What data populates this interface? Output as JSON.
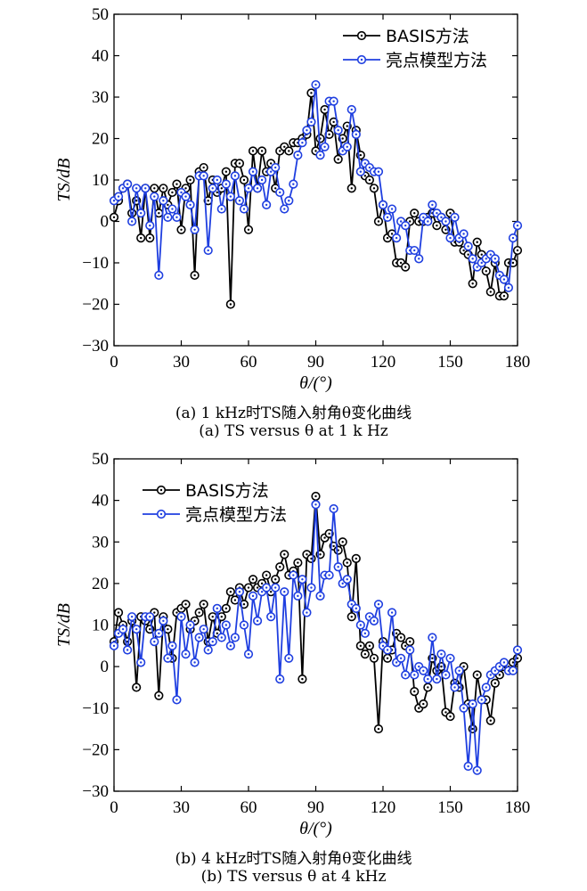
{
  "chart_data": [
    {
      "type": "line",
      "xlabel": "θ/(°)",
      "ylabel": "TS/dB",
      "xlim": [
        0,
        180
      ],
      "ylim": [
        -30,
        50
      ],
      "xticks": [
        0,
        30,
        60,
        90,
        120,
        150,
        180
      ],
      "yticks": [
        -30,
        -20,
        -10,
        0,
        10,
        20,
        30,
        40,
        50
      ],
      "xtick_labels": [
        "0",
        "30",
        "60",
        "90",
        "120",
        "150",
        "180"
      ],
      "ytick_labels": [
        "−30",
        "−20",
        "−10",
        "0",
        "10",
        "20",
        "30",
        "40",
        "50"
      ],
      "grid": false,
      "legend_position": "top-right",
      "caption_cn": "(a) 1 kHz时TS随入射角θ变化曲线",
      "caption_en": "(a) TS versus θ at 1 k Hz",
      "series": [
        {
          "name": "BASIS方法",
          "color": "#000000",
          "x": [
            0,
            2,
            4,
            6,
            8,
            10,
            12,
            14,
            16,
            18,
            20,
            22,
            24,
            26,
            28,
            30,
            32,
            34,
            36,
            38,
            40,
            42,
            44,
            46,
            48,
            50,
            52,
            54,
            56,
            58,
            60,
            62,
            64,
            66,
            68,
            70,
            72,
            74,
            76,
            78,
            80,
            82,
            84,
            86,
            88,
            90,
            92,
            94,
            96,
            98,
            100,
            102,
            104,
            106,
            108,
            110,
            112,
            114,
            116,
            118,
            120,
            122,
            124,
            126,
            128,
            130,
            132,
            134,
            136,
            138,
            140,
            142,
            144,
            146,
            148,
            150,
            152,
            154,
            156,
            158,
            160,
            162,
            164,
            166,
            168,
            170,
            172,
            174,
            176,
            178,
            180
          ],
          "y": [
            1,
            5,
            8,
            9,
            2,
            5,
            -4,
            8,
            -4,
            8,
            2,
            8,
            4,
            7,
            9,
            -2,
            8,
            10,
            -13,
            12,
            13,
            5,
            10,
            7,
            8,
            12,
            -20,
            14,
            14,
            10,
            -2,
            17,
            8,
            17,
            12,
            14,
            8,
            17,
            18,
            17,
            19,
            19,
            20,
            21,
            31,
            17,
            20,
            27,
            21,
            24,
            15,
            20,
            23,
            8,
            22,
            16,
            11,
            10,
            8,
            0,
            4,
            -4,
            -3,
            -10,
            -10,
            -11,
            0,
            2,
            0,
            0,
            1,
            2,
            -1,
            1,
            -2,
            2,
            -5,
            -5,
            -7,
            -8,
            -15,
            -5,
            -8,
            -12,
            -17,
            -10,
            -18,
            -18,
            -10,
            -10,
            -7
          ]
        },
        {
          "name": "亮点模型方法",
          "color": "#1f3fe0",
          "x": [
            0,
            2,
            4,
            6,
            8,
            10,
            12,
            14,
            16,
            18,
            20,
            22,
            24,
            26,
            28,
            30,
            32,
            34,
            36,
            38,
            40,
            42,
            44,
            46,
            48,
            50,
            52,
            54,
            56,
            58,
            60,
            62,
            64,
            66,
            68,
            70,
            72,
            74,
            76,
            78,
            80,
            82,
            84,
            86,
            88,
            90,
            92,
            94,
            96,
            98,
            100,
            102,
            104,
            106,
            108,
            110,
            112,
            114,
            116,
            118,
            120,
            122,
            124,
            126,
            128,
            130,
            132,
            134,
            136,
            138,
            140,
            142,
            144,
            146,
            148,
            150,
            152,
            154,
            156,
            158,
            160,
            162,
            164,
            166,
            168,
            170,
            172,
            174,
            176,
            178,
            180
          ],
          "y": [
            5,
            6,
            8,
            9,
            0,
            8,
            2,
            8,
            -1,
            6,
            -13,
            5,
            1,
            3,
            1,
            7,
            6,
            4,
            -2,
            11,
            11,
            -7,
            8,
            10,
            3,
            9,
            6,
            11,
            5,
            3,
            8,
            12,
            8,
            10,
            4,
            12,
            13,
            7,
            3,
            5,
            9,
            16,
            19,
            22,
            24,
            33,
            16,
            18,
            29,
            29,
            22,
            17,
            18,
            27,
            21,
            12,
            14,
            13,
            12,
            12,
            4,
            1,
            3,
            -4,
            0,
            -1,
            -7,
            -7,
            -9,
            1,
            0,
            4,
            2,
            1,
            0,
            -4,
            1,
            -4,
            -3,
            -6,
            -9,
            -11,
            -10,
            -9,
            -8,
            -9,
            -13,
            -14,
            -16,
            -4,
            -1
          ]
        }
      ]
    },
    {
      "type": "line",
      "xlabel": "θ/(°)",
      "ylabel": "TS/dB",
      "xlim": [
        0,
        180
      ],
      "ylim": [
        -30,
        50
      ],
      "xticks": [
        0,
        30,
        60,
        90,
        120,
        150,
        180
      ],
      "yticks": [
        -30,
        -20,
        -10,
        0,
        10,
        20,
        30,
        40,
        50
      ],
      "xtick_labels": [
        "0",
        "30",
        "60",
        "90",
        "120",
        "150",
        "180"
      ],
      "ytick_labels": [
        "−30",
        "−20",
        "−10",
        "0",
        "10",
        "20",
        "30",
        "40",
        "50"
      ],
      "grid": false,
      "legend_position": "top-left",
      "caption_cn": "(b) 4 kHz时TS随入射角θ变化曲线",
      "caption_en": "(b) TS versus θ at 4 kHz",
      "series": [
        {
          "name": "BASIS方法",
          "color": "#000000",
          "x": [
            0,
            2,
            4,
            6,
            8,
            10,
            12,
            14,
            16,
            18,
            20,
            22,
            24,
            26,
            28,
            30,
            32,
            34,
            36,
            38,
            40,
            42,
            44,
            46,
            48,
            50,
            52,
            54,
            56,
            58,
            60,
            62,
            64,
            66,
            68,
            70,
            72,
            74,
            76,
            78,
            80,
            82,
            84,
            86,
            88,
            90,
            92,
            94,
            96,
            98,
            100,
            102,
            104,
            106,
            108,
            110,
            112,
            114,
            116,
            118,
            120,
            122,
            124,
            126,
            128,
            130,
            132,
            134,
            136,
            138,
            140,
            142,
            144,
            146,
            148,
            150,
            152,
            154,
            156,
            158,
            160,
            162,
            164,
            166,
            168,
            170,
            172,
            174,
            176,
            178,
            180
          ],
          "y": [
            6,
            13,
            10,
            6,
            11,
            -5,
            12,
            11,
            9,
            13,
            -7,
            12,
            9,
            2,
            13,
            14,
            15,
            9,
            11,
            13,
            15,
            6,
            12,
            8,
            12,
            14,
            18,
            16,
            19,
            15,
            19,
            21,
            19,
            20,
            22,
            18,
            21,
            24,
            27,
            22,
            23,
            25,
            -3,
            27,
            26,
            41,
            27,
            31,
            32,
            29,
            28,
            30,
            25,
            12,
            26,
            5,
            3,
            5,
            2,
            -15,
            6,
            2,
            4,
            8,
            7,
            5,
            6,
            -6,
            -10,
            -9,
            -5,
            2,
            -1,
            0,
            -11,
            -12,
            -4,
            -5,
            0,
            -9,
            -15,
            -2,
            -8,
            -8,
            -13,
            -4,
            -2,
            0,
            0,
            1,
            2
          ]
        },
        {
          "name": "亮点模型方法",
          "color": "#1f3fe0",
          "x": [
            0,
            2,
            4,
            6,
            8,
            10,
            12,
            14,
            16,
            18,
            20,
            22,
            24,
            26,
            28,
            30,
            32,
            34,
            36,
            38,
            40,
            42,
            44,
            46,
            48,
            50,
            52,
            54,
            56,
            58,
            60,
            62,
            64,
            66,
            68,
            70,
            72,
            74,
            76,
            78,
            80,
            82,
            84,
            86,
            88,
            90,
            92,
            94,
            96,
            98,
            100,
            102,
            104,
            106,
            108,
            110,
            112,
            114,
            116,
            118,
            120,
            122,
            124,
            126,
            128,
            130,
            132,
            134,
            136,
            138,
            140,
            142,
            144,
            146,
            148,
            150,
            152,
            154,
            156,
            158,
            160,
            162,
            164,
            166,
            168,
            170,
            172,
            174,
            176,
            178,
            180
          ],
          "y": [
            5,
            8,
            9,
            4,
            12,
            9,
            1,
            12,
            12,
            6,
            8,
            11,
            2,
            5,
            -8,
            12,
            3,
            10,
            1,
            7,
            9,
            4,
            6,
            14,
            7,
            10,
            5,
            7,
            18,
            10,
            3,
            17,
            11,
            18,
            19,
            12,
            19,
            -3,
            18,
            2,
            22,
            17,
            21,
            13,
            19,
            39,
            17,
            22,
            22,
            38,
            24,
            20,
            21,
            15,
            14,
            10,
            8,
            12,
            11,
            15,
            5,
            4,
            13,
            1,
            2,
            -2,
            4,
            -2,
            0,
            -1,
            -3,
            7,
            -3,
            3,
            -2,
            2,
            -5,
            -1,
            -10,
            -24,
            -9,
            -25,
            -8,
            -5,
            -2,
            -1,
            0,
            1,
            -1,
            -1,
            4
          ]
        }
      ]
    }
  ]
}
